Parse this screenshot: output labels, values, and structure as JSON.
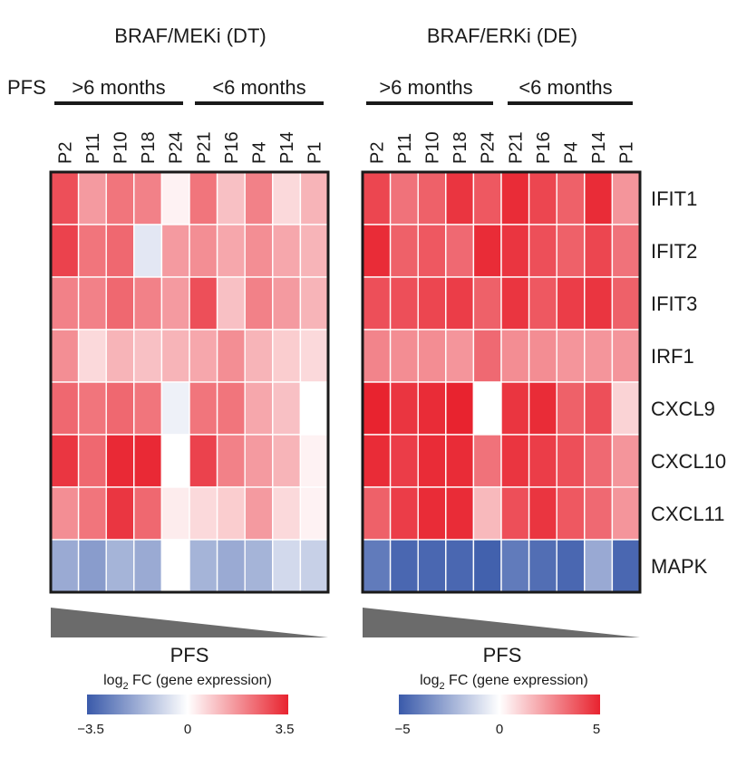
{
  "chart_data": [
    {
      "type": "heatmap",
      "title": "BRAF/MEKi (DT)",
      "group_label": "PFS",
      "groups": [
        {
          "label": ">6 months",
          "columns": [
            "P2",
            "P11",
            "P10",
            "P18",
            "P24"
          ]
        },
        {
          "label": "<6 months",
          "columns": [
            "P21",
            "P16",
            "P4",
            "P14",
            "P1"
          ]
        }
      ],
      "columns": [
        "P2",
        "P11",
        "P10",
        "P18",
        "P24",
        "P21",
        "P16",
        "P4",
        "P14",
        "P1"
      ],
      "rows": [
        "IFIT1",
        "IFIT2",
        "IFIT3",
        "IRF1",
        "CXCL9",
        "CXCL10",
        "CXCL11",
        "MAPK"
      ],
      "values": [
        [
          2.8,
          1.6,
          2.2,
          2.0,
          0.2,
          2.2,
          1.0,
          2.0,
          0.6,
          1.2
        ],
        [
          3.0,
          2.2,
          2.4,
          -0.5,
          1.6,
          1.8,
          1.4,
          1.8,
          1.4,
          1.2
        ],
        [
          2.0,
          2.0,
          2.4,
          2.0,
          1.6,
          2.8,
          1.0,
          2.0,
          1.6,
          1.2
        ],
        [
          1.8,
          0.6,
          1.2,
          1.0,
          1.2,
          1.4,
          1.8,
          1.2,
          0.8,
          0.6
        ],
        [
          2.4,
          2.2,
          2.4,
          2.2,
          -0.3,
          2.2,
          2.2,
          1.4,
          1.0,
          0.0
        ],
        [
          3.2,
          2.4,
          3.4,
          3.4,
          0.0,
          3.0,
          2.0,
          1.6,
          1.2,
          0.2
        ],
        [
          1.8,
          2.2,
          3.2,
          2.4,
          0.3,
          0.6,
          0.8,
          1.6,
          0.6,
          0.2
        ],
        [
          -1.8,
          -2.1,
          -1.6,
          -1.8,
          0.0,
          -1.6,
          -1.8,
          -1.6,
          -0.8,
          -1.0
        ]
      ],
      "arrow_label": "PFS",
      "colorbar": {
        "title_pre": "log",
        "title_sub": "2",
        "title_post": " FC (gene expression)",
        "min": -3.5,
        "mid": 0,
        "max": 3.5,
        "tick_labels": [
          "−3.5",
          "0",
          "3.5"
        ],
        "low_color": "#3a5aaa",
        "mid_color": "#ffffff",
        "high_color": "#e8232f"
      }
    },
    {
      "type": "heatmap",
      "title": "BRAF/ERKi (DE)",
      "group_label": "",
      "groups": [
        {
          "label": ">6 months",
          "columns": [
            "P2",
            "P11",
            "P10",
            "P18",
            "P24"
          ]
        },
        {
          "label": "<6 months",
          "columns": [
            "P21",
            "P16",
            "P4",
            "P14",
            "P1"
          ]
        }
      ],
      "columns": [
        "P2",
        "P11",
        "P10",
        "P18",
        "P24",
        "P21",
        "P16",
        "P4",
        "P14",
        "P1"
      ],
      "rows": [
        "IFIT1",
        "IFIT2",
        "IFIT3",
        "IRF1",
        "CXCL9",
        "CXCL10",
        "CXCL11",
        "MAPK"
      ],
      "values": [
        [
          4.2,
          3.2,
          3.6,
          4.6,
          3.8,
          4.8,
          4.2,
          3.6,
          4.8,
          2.4
        ],
        [
          4.8,
          3.6,
          3.8,
          3.4,
          4.8,
          4.6,
          4.0,
          3.6,
          4.2,
          3.2
        ],
        [
          4.0,
          4.0,
          4.2,
          4.4,
          3.6,
          4.6,
          3.8,
          4.4,
          4.6,
          3.6
        ],
        [
          2.8,
          2.6,
          2.6,
          2.4,
          3.4,
          2.6,
          2.6,
          2.4,
          2.4,
          2.4
        ],
        [
          5.0,
          4.6,
          4.8,
          5.0,
          0.0,
          4.6,
          4.8,
          3.6,
          4.0,
          1.0
        ],
        [
          4.8,
          4.4,
          4.8,
          4.8,
          3.2,
          4.6,
          4.4,
          4.0,
          3.4,
          2.4
        ],
        [
          3.6,
          4.4,
          4.8,
          4.8,
          1.6,
          4.0,
          4.6,
          3.8,
          3.4,
          2.4
        ],
        [
          -4.0,
          -4.6,
          -4.6,
          -4.6,
          -4.8,
          -4.0,
          -4.4,
          -4.6,
          -2.6,
          -4.6
        ]
      ],
      "arrow_label": "PFS",
      "colorbar": {
        "title_pre": "log",
        "title_sub": "2",
        "title_post": " FC (gene expression)",
        "min": -5,
        "mid": 0,
        "max": 5,
        "tick_labels": [
          "−5",
          "0",
          "5"
        ],
        "low_color": "#3a5aaa",
        "mid_color": "#ffffff",
        "high_color": "#e8232f"
      }
    }
  ]
}
